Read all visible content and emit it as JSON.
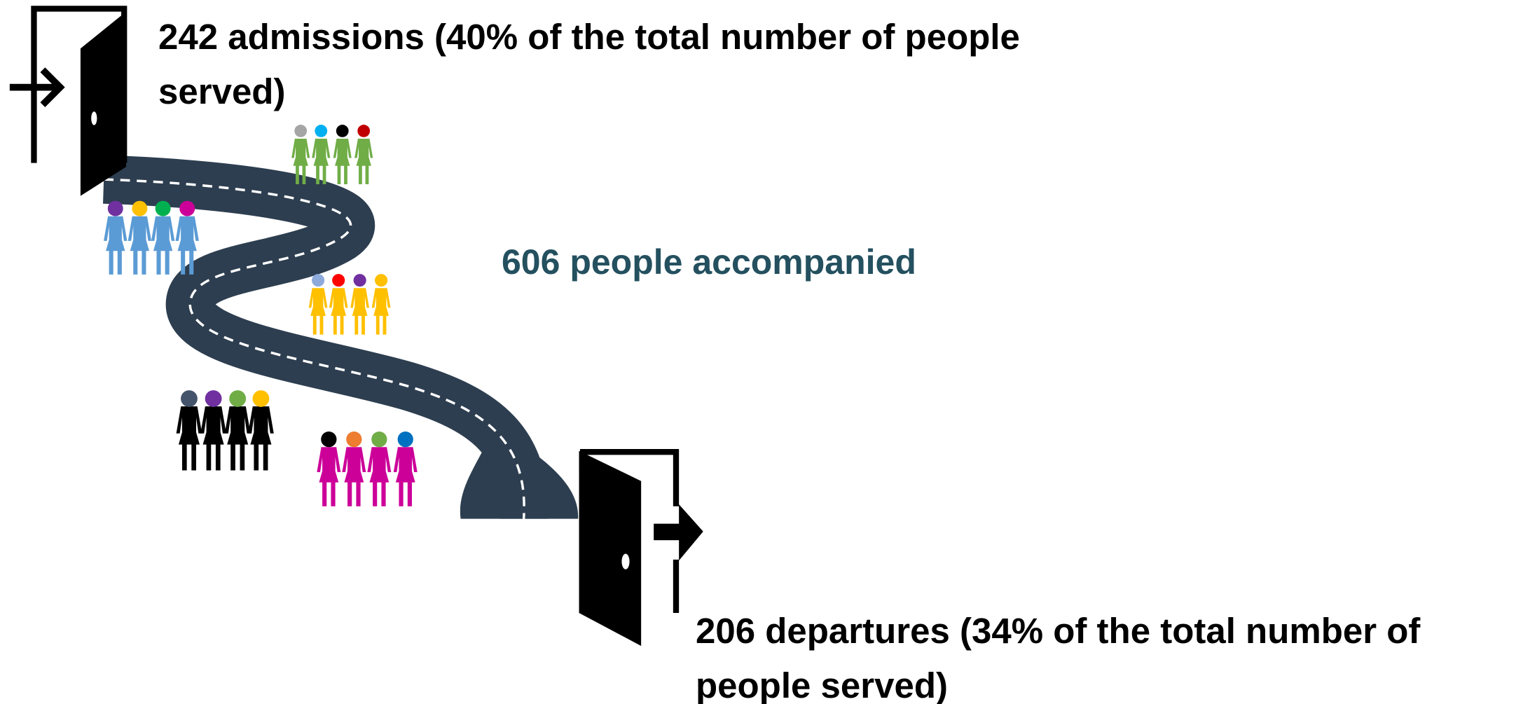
{
  "admissions": "242 admissions (40% of the total number of people served)",
  "accompanied": "606 people accompanied",
  "departures": "206 departures (34% of the total number of people served)"
}
